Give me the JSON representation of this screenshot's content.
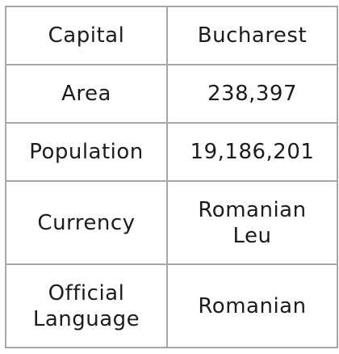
{
  "rows": [
    {
      "label": "Capital",
      "value": "Bucharest"
    },
    {
      "label": "Area",
      "value": "238,397"
    },
    {
      "label": "Population",
      "value": "19,186,201"
    },
    {
      "label": "Currency",
      "value_lines": [
        "Romanian",
        "Leu"
      ]
    },
    {
      "label_lines": [
        "Official",
        "Language"
      ],
      "value": "Romanian"
    }
  ]
}
